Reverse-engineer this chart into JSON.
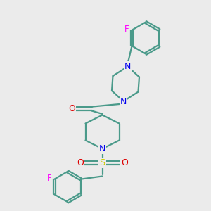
{
  "bg_color": "#ebebeb",
  "bond_color": "#4a9a8a",
  "N_color": "#0000ee",
  "O_color": "#dd0000",
  "S_color": "#cccc00",
  "F_color": "#ff00ff",
  "line_width": 1.6,
  "figsize": [
    3.0,
    3.0
  ],
  "dpi": 100,
  "xlim": [
    0,
    10
  ],
  "ylim": [
    0,
    10
  ]
}
